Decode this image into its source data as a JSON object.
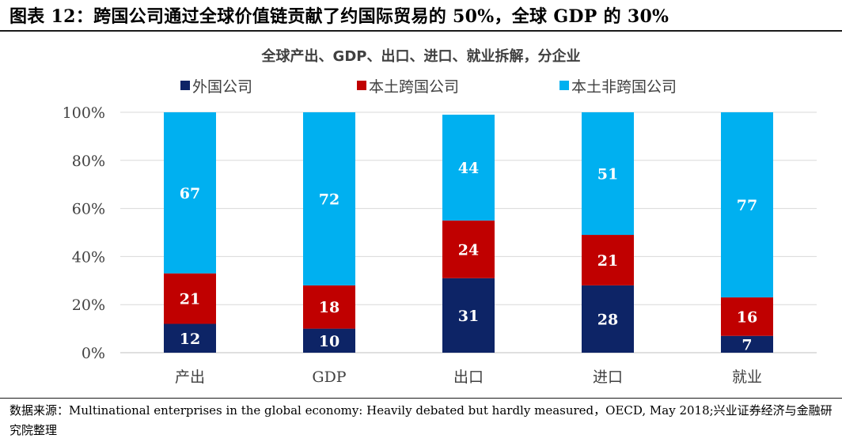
{
  "figure": {
    "title": "图表 12：跨国公司通过全球价值链贡献了约国际贸易的 50%，全球 GDP 的 30%",
    "source": "数据来源：Multinational enterprises in the global economy: Heavily debated but hardly measured，OECD, May 2018;兴业证券经济与金融研究院整理"
  },
  "chart_data": {
    "type": "bar",
    "stacked": true,
    "title": "全球产出、GDP、出口、进口、就业拆解，分企业",
    "categories": [
      "产出",
      "GDP",
      "出口",
      "进口",
      "就业"
    ],
    "series": [
      {
        "name": "外国公司",
        "values": [
          12,
          10,
          31,
          28,
          7
        ],
        "color": "#0d2466"
      },
      {
        "name": "本土跨国公司",
        "values": [
          21,
          18,
          24,
          21,
          16
        ],
        "color": "#c00000"
      },
      {
        "name": "本土非跨国公司",
        "values": [
          67,
          72,
          44,
          51,
          77
        ],
        "color": "#00b0f0"
      }
    ],
    "ylim": [
      0,
      100
    ],
    "yticks": [
      "0%",
      "20%",
      "40%",
      "60%",
      "80%",
      "100%"
    ],
    "xlabel": "",
    "ylabel": "",
    "legend_position": "top",
    "grid": true
  }
}
